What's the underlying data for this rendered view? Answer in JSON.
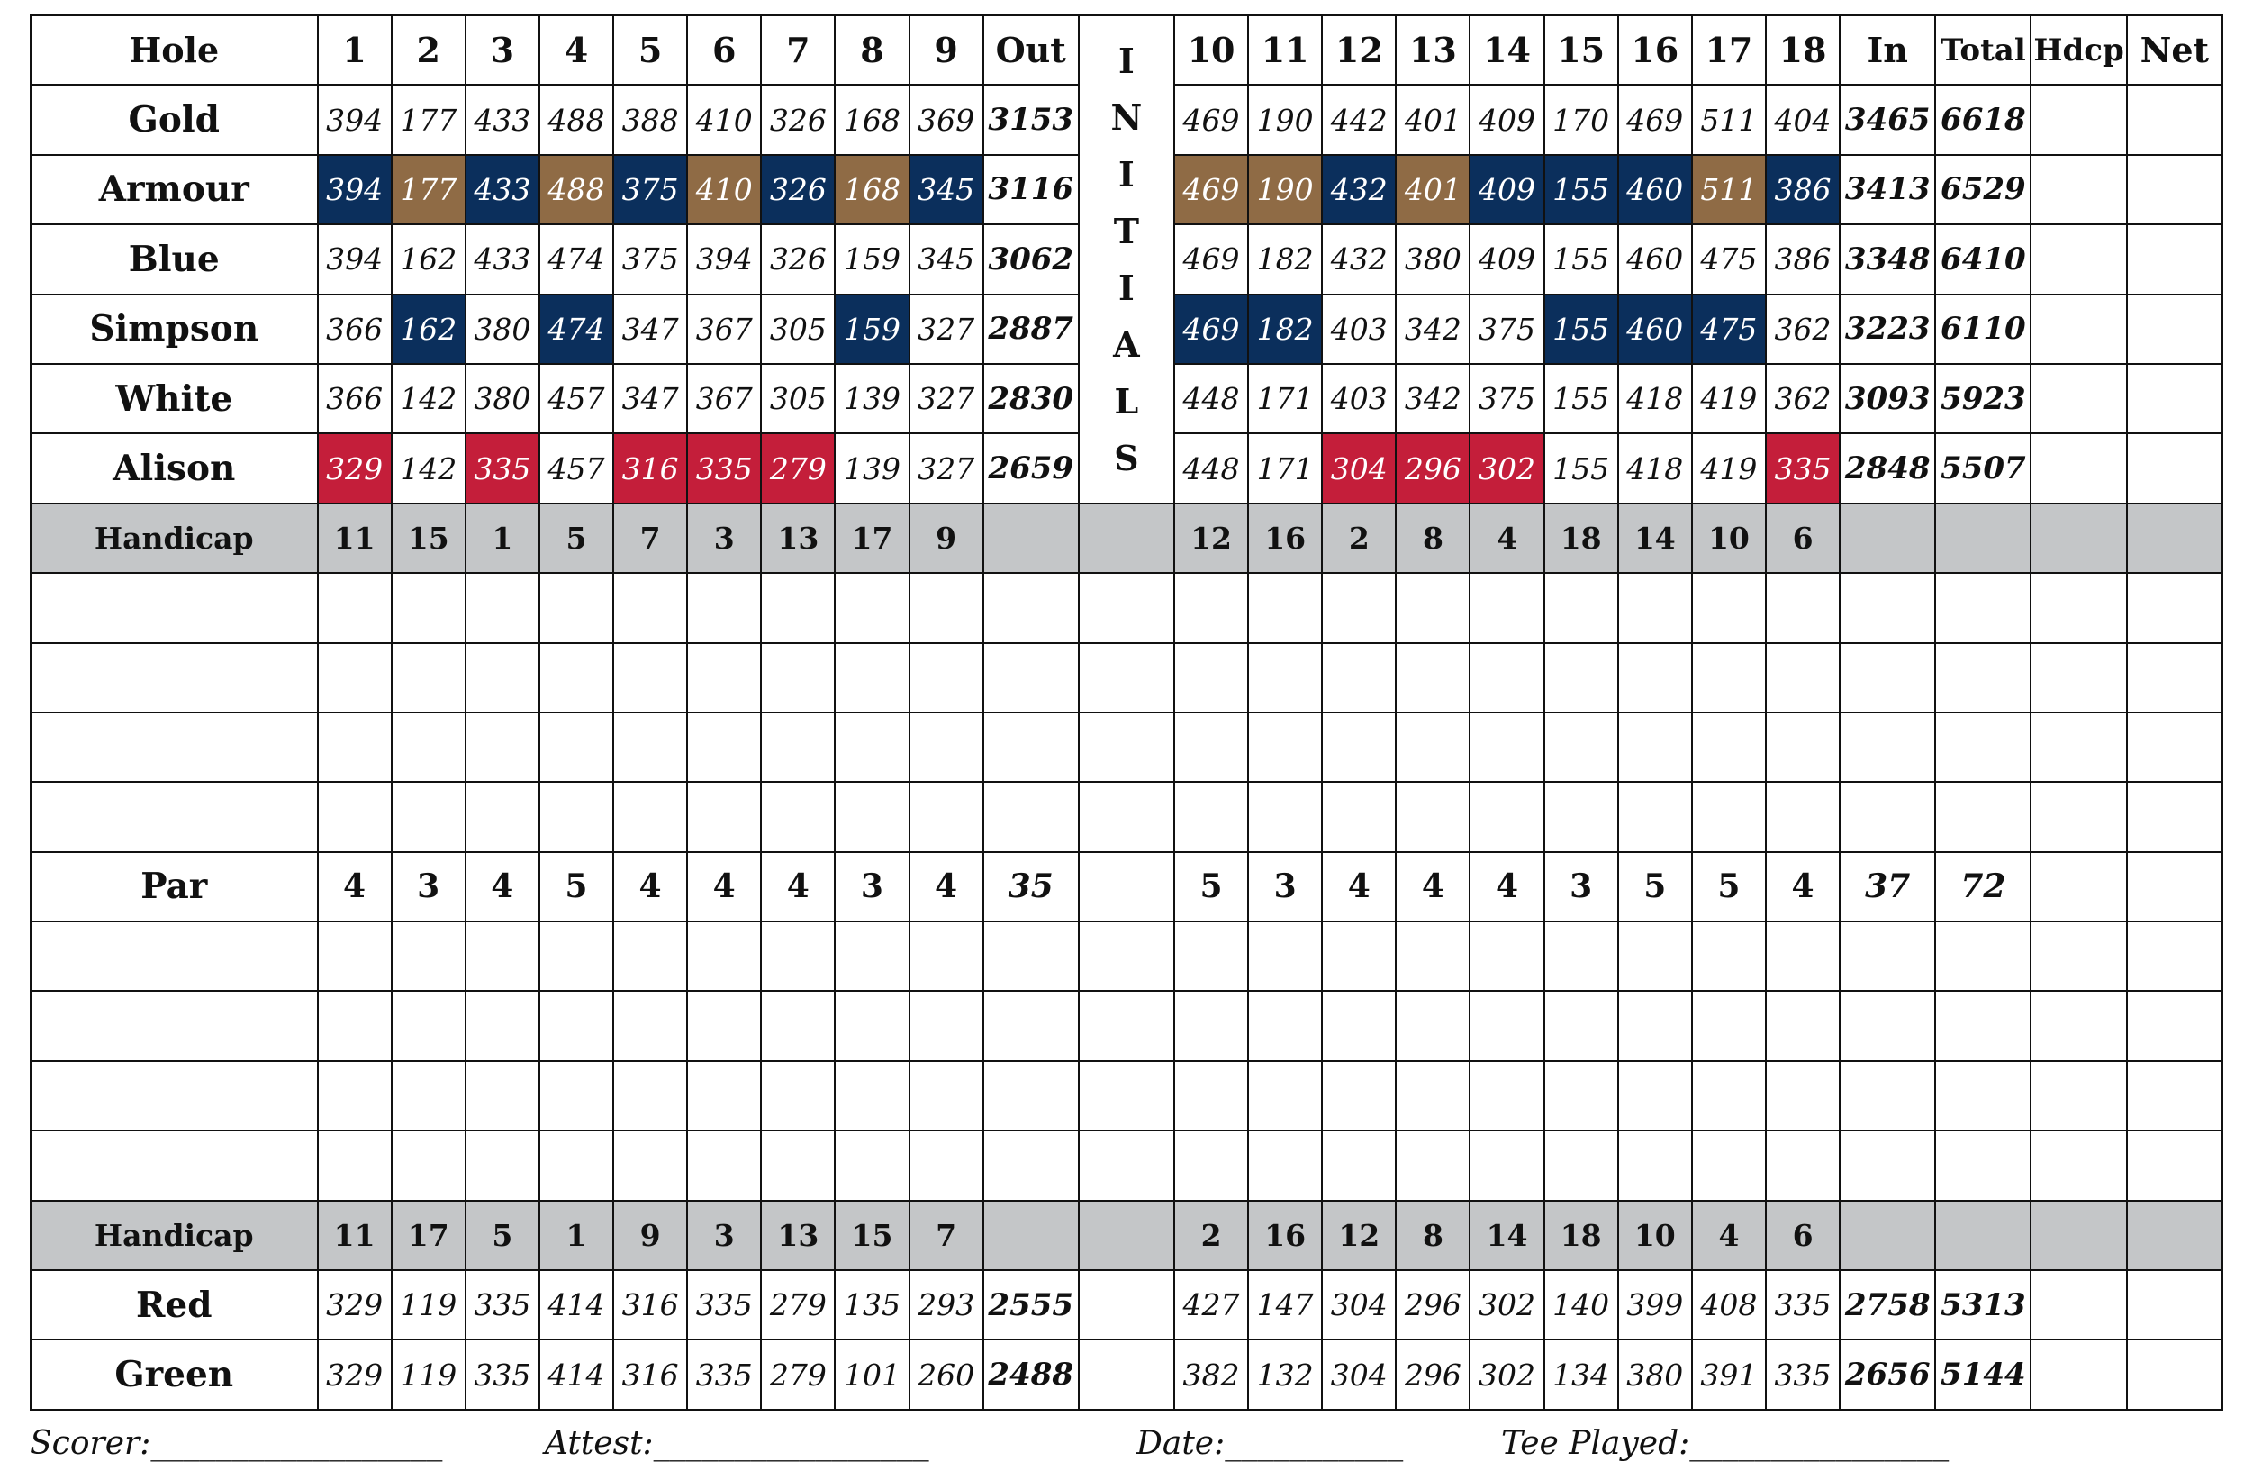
{
  "header": {
    "hole_label": "Hole",
    "front_holes": [
      "1",
      "2",
      "3",
      "4",
      "5",
      "6",
      "7",
      "8",
      "9"
    ],
    "out_label": "Out",
    "back_holes": [
      "10",
      "11",
      "12",
      "13",
      "14",
      "15",
      "16",
      "17",
      "18"
    ],
    "in_label": "In",
    "total_label": "Total",
    "hdcp_label": "Hdcp",
    "net_label": "Net"
  },
  "initials_letters": [
    "I",
    "N",
    "I",
    "T",
    "I",
    "A",
    "L",
    "S"
  ],
  "colors": {
    "blue": "#0b2f5c",
    "gold": "#8f6b45",
    "red": "#c41e3a",
    "handicap_gray": "#c4c6c8"
  },
  "tees_top": [
    {
      "name": "Gold",
      "front": [
        "394",
        "177",
        "433",
        "488",
        "388",
        "410",
        "326",
        "168",
        "369"
      ],
      "out": "3153",
      "back": [
        "469",
        "190",
        "442",
        "401",
        "409",
        "170",
        "469",
        "511",
        "404"
      ],
      "in": "3465",
      "total": "6618",
      "colors": []
    },
    {
      "name": "Armour",
      "front": [
        "394",
        "177",
        "433",
        "488",
        "375",
        "410",
        "326",
        "168",
        "345"
      ],
      "out": "3116",
      "back": [
        "469",
        "190",
        "432",
        "401",
        "409",
        "155",
        "460",
        "511",
        "386"
      ],
      "in": "3413",
      "total": "6529",
      "colors": [
        "blue",
        "gold",
        "blue",
        "gold",
        "blue",
        "gold",
        "blue",
        "gold",
        "blue",
        "gold",
        "gold",
        "blue",
        "gold",
        "blue",
        "blue",
        "blue",
        "gold",
        "blue"
      ]
    },
    {
      "name": "Blue",
      "front": [
        "394",
        "162",
        "433",
        "474",
        "375",
        "394",
        "326",
        "159",
        "345"
      ],
      "out": "3062",
      "back": [
        "469",
        "182",
        "432",
        "380",
        "409",
        "155",
        "460",
        "475",
        "386"
      ],
      "in": "3348",
      "total": "6410",
      "colors": []
    },
    {
      "name": "Simpson",
      "front": [
        "366",
        "162",
        "380",
        "474",
        "347",
        "367",
        "305",
        "159",
        "327"
      ],
      "out": "2887",
      "back": [
        "469",
        "182",
        "403",
        "342",
        "375",
        "155",
        "460",
        "475",
        "362"
      ],
      "in": "3223",
      "total": "6110",
      "colors": [
        "",
        "blue",
        "",
        "blue",
        "",
        "",
        "",
        "blue",
        "",
        "blue",
        "blue",
        "",
        "",
        "",
        "blue",
        "blue",
        "blue",
        ""
      ]
    },
    {
      "name": "White",
      "front": [
        "366",
        "142",
        "380",
        "457",
        "347",
        "367",
        "305",
        "139",
        "327"
      ],
      "out": "2830",
      "back": [
        "448",
        "171",
        "403",
        "342",
        "375",
        "155",
        "418",
        "419",
        "362"
      ],
      "in": "3093",
      "total": "5923",
      "colors": []
    },
    {
      "name": "Alison",
      "front": [
        "329",
        "142",
        "335",
        "457",
        "316",
        "335",
        "279",
        "139",
        "327"
      ],
      "out": "2659",
      "back": [
        "448",
        "171",
        "304",
        "296",
        "302",
        "155",
        "418",
        "419",
        "335"
      ],
      "in": "2848",
      "total": "5507",
      "colors": [
        "red",
        "",
        "red",
        "",
        "red",
        "red",
        "red",
        "",
        "",
        "",
        "",
        "red",
        "red",
        "red",
        "",
        "",
        "",
        "red"
      ]
    }
  ],
  "handicap_mens": {
    "label": "Handicap",
    "front": [
      "11",
      "15",
      "1",
      "5",
      "7",
      "3",
      "13",
      "17",
      "9"
    ],
    "back": [
      "12",
      "16",
      "2",
      "8",
      "4",
      "18",
      "14",
      "10",
      "6"
    ]
  },
  "par": {
    "label": "Par",
    "front": [
      "4",
      "3",
      "4",
      "5",
      "4",
      "4",
      "4",
      "3",
      "4"
    ],
    "out": "35",
    "back": [
      "5",
      "3",
      "4",
      "4",
      "4",
      "3",
      "5",
      "5",
      "4"
    ],
    "in": "37",
    "total": "72"
  },
  "handicap_womens": {
    "label": "Handicap",
    "front": [
      "11",
      "17",
      "5",
      "1",
      "9",
      "3",
      "13",
      "15",
      "7"
    ],
    "back": [
      "2",
      "16",
      "12",
      "8",
      "14",
      "18",
      "10",
      "4",
      "6"
    ]
  },
  "tees_bottom": [
    {
      "name": "Red",
      "front": [
        "329",
        "119",
        "335",
        "414",
        "316",
        "335",
        "279",
        "135",
        "293"
      ],
      "out": "2555",
      "back": [
        "427",
        "147",
        "304",
        "296",
        "302",
        "140",
        "399",
        "408",
        "335"
      ],
      "in": "2758",
      "total": "5313",
      "colors": []
    },
    {
      "name": "Green",
      "front": [
        "329",
        "119",
        "335",
        "414",
        "316",
        "335",
        "279",
        "101",
        "260"
      ],
      "out": "2488",
      "back": [
        "382",
        "132",
        "304",
        "296",
        "302",
        "134",
        "380",
        "391",
        "335"
      ],
      "in": "2656",
      "total": "5144",
      "colors": []
    }
  ],
  "footer": {
    "scorer": "Scorer:__________________",
    "attest": "Attest:_________________",
    "date": "Date:___________",
    "tee_played": "Tee Played:________________"
  }
}
